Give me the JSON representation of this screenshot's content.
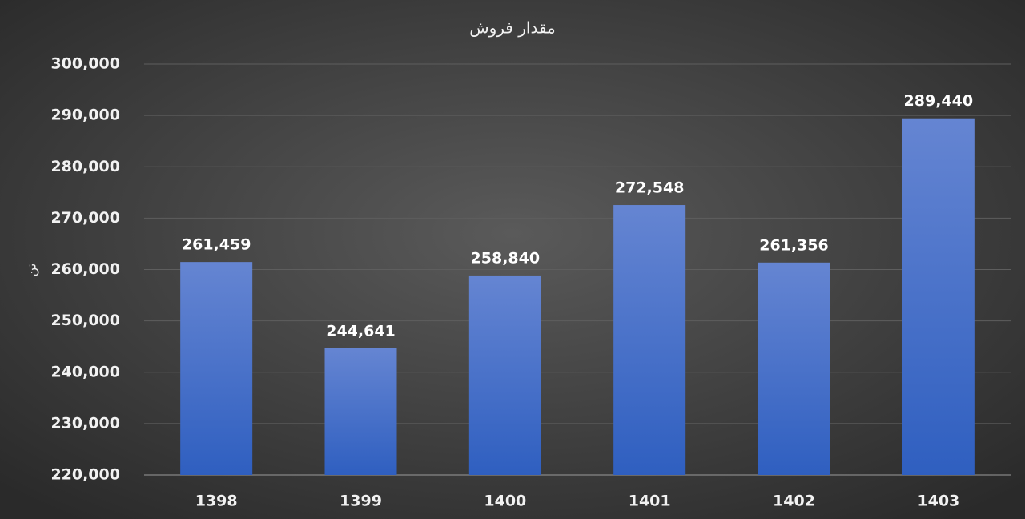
{
  "chart_data": {
    "type": "bar",
    "title": "مقدار فروش",
    "y_label": "تن",
    "categories": [
      "1398",
      "1399",
      "1400",
      "1401",
      "1402",
      "1403"
    ],
    "values": [
      261459,
      244641,
      258840,
      272548,
      261356,
      289440
    ],
    "value_labels": [
      "261,459",
      "244,641",
      "258,840",
      "272,548",
      "261,356",
      "289,440"
    ],
    "color": "#4a72cc",
    "ylim": [
      220000,
      300000
    ],
    "yticks": [
      {
        "value": 220000,
        "label": "220,000"
      },
      {
        "value": 230000,
        "label": "230,000"
      },
      {
        "value": 240000,
        "label": "240,000"
      },
      {
        "value": 250000,
        "label": "250,000"
      },
      {
        "value": 260000,
        "label": "260,000"
      },
      {
        "value": 270000,
        "label": "270,000"
      },
      {
        "value": 280000,
        "label": "280,000"
      },
      {
        "value": 290000,
        "label": "290,000"
      },
      {
        "value": 300000,
        "label": "300,000"
      }
    ],
    "grid": true
  }
}
